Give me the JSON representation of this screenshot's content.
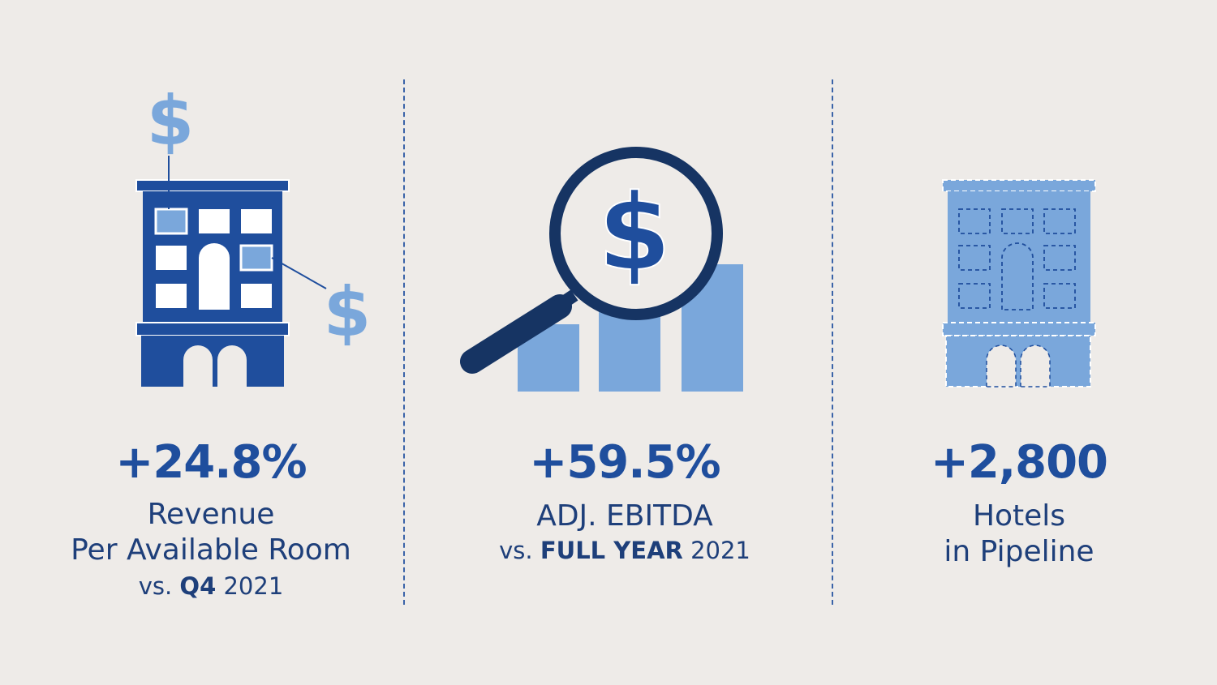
{
  "stats": [
    {
      "value": "+24.8%",
      "label_line1": "Revenue",
      "label_line2": "Per Available Room",
      "sub_prefix": "vs.",
      "sub_bold": "Q4",
      "sub_suffix": "2021",
      "icon": "hotel-building-with-dollar-icon"
    },
    {
      "value": "+59.5%",
      "label_line1": "ADJ. EBITDA",
      "sub_prefix": "vs.",
      "sub_bold": "FULL YEAR",
      "sub_suffix": "2021",
      "icon": "magnifier-bar-chart-dollar-icon"
    },
    {
      "value": "+2,800",
      "label_line1": "Hotels",
      "label_line2": "in Pipeline",
      "icon": "pipeline-hotel-building-icon"
    }
  ],
  "colors": {
    "background": "#EEEBE8",
    "dark_blue": "#1F4E9D",
    "navy": "#163463",
    "light_blue": "#7AA7DB",
    "text": "#1E3F7A"
  }
}
